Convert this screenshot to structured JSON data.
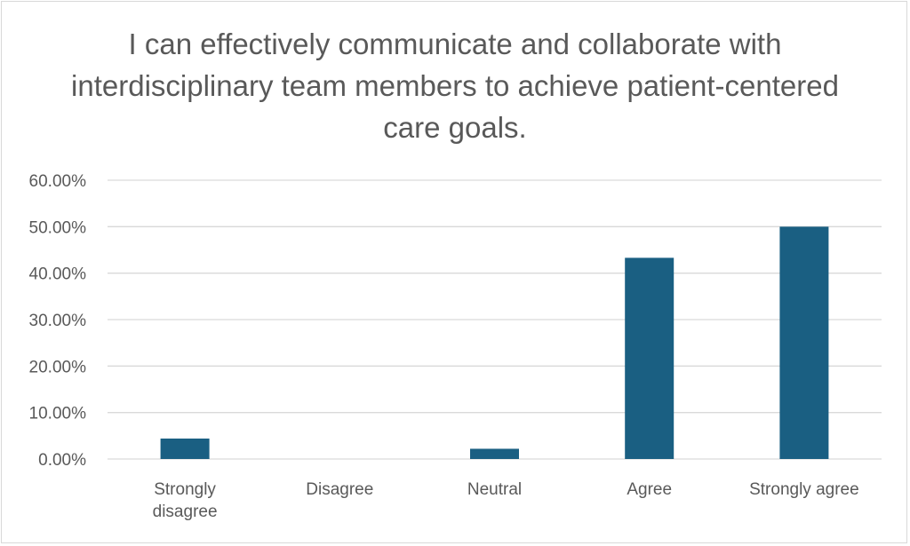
{
  "chart_data": {
    "type": "bar",
    "title": "I can effectively communicate and collaborate with interdisciplinary team members to achieve patient-centered care goals.",
    "categories": [
      "Strongly disagree",
      "Disagree",
      "Neutral",
      "Agree",
      "Strongly agree"
    ],
    "values": [
      4.4,
      0,
      2.2,
      43.3,
      50.0
    ],
    "ylim": [
      0,
      60
    ],
    "yticks": [
      "0.00%",
      "10.00%",
      "20.00%",
      "30.00%",
      "40.00%",
      "50.00%",
      "60.00%"
    ],
    "grid": true,
    "colors": {
      "bar": "#1a5f82",
      "grid": "#d9d9d9",
      "text": "#595959"
    }
  }
}
